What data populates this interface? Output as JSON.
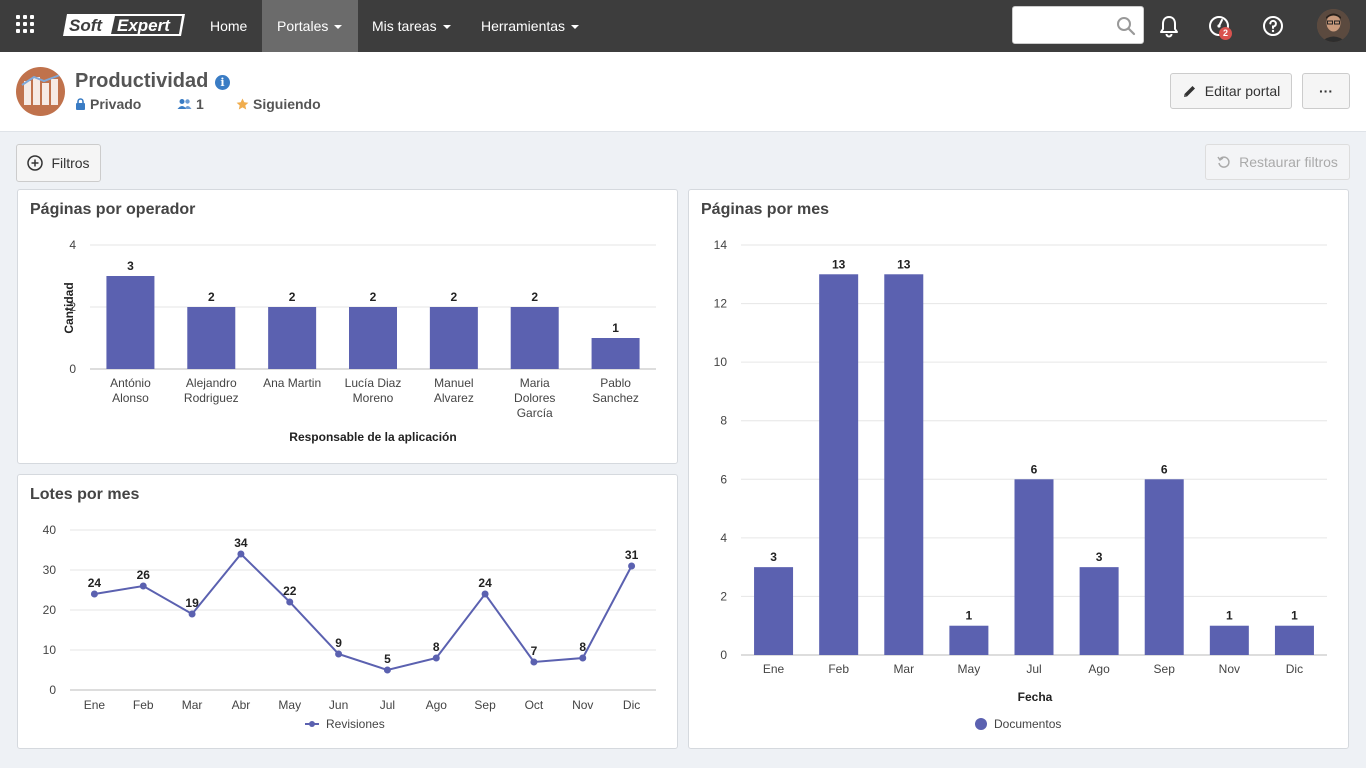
{
  "nav": {
    "home": "Home",
    "portales": "Portales",
    "mis_tareas": "Mis tareas",
    "herramientas": "Herramientas",
    "search_value": "",
    "notification_badge": "2",
    "logo_text_1": "Soft",
    "logo_text_2": "Expert"
  },
  "portal": {
    "title": "Productividad",
    "privacy": "Privado",
    "members": "1",
    "following": "Siguiendo",
    "edit_button": "Editar portal",
    "more_button": "···"
  },
  "filters": {
    "filter_button": "Filtros",
    "reset_button": "Restaurar filtros"
  },
  "colors": {
    "bar": "#5b61b0",
    "nav_bg": "#3d3d3d",
    "nav_active": "#6b6b6b",
    "grid": "#e6e6e6"
  },
  "chart_data": [
    {
      "id": "paginas-por-operador",
      "type": "bar",
      "title": "Páginas por operador",
      "xlabel": "Responsable de la aplicación",
      "ylabel": "Cantidad",
      "categories": [
        [
          "António",
          "Alonso"
        ],
        [
          "Alejandro",
          "Rodriguez"
        ],
        [
          "Ana Martin"
        ],
        [
          "Lucía Diaz",
          "Moreno"
        ],
        [
          "Manuel",
          "Alvarez"
        ],
        [
          "Maria",
          "Dolores",
          "García"
        ],
        [
          "Pablo",
          "Sanchez"
        ]
      ],
      "values": [
        3,
        2,
        2,
        2,
        2,
        2,
        1
      ],
      "ylim": [
        0,
        4
      ],
      "yticks": [
        0,
        2,
        4
      ],
      "grid": true
    },
    {
      "id": "lotes-por-mes",
      "type": "line",
      "title": "Lotes por mes",
      "categories": [
        "Ene",
        "Feb",
        "Mar",
        "Abr",
        "May",
        "Jun",
        "Jul",
        "Ago",
        "Sep",
        "Oct",
        "Nov",
        "Dic"
      ],
      "series": [
        {
          "name": "Revisiones",
          "values": [
            24,
            26,
            19,
            34,
            22,
            9,
            5,
            8,
            24,
            7,
            8,
            31
          ]
        }
      ],
      "ylim": [
        0,
        40
      ],
      "yticks": [
        0,
        10,
        20,
        30,
        40
      ],
      "legend": "bottom",
      "grid": true
    },
    {
      "id": "paginas-por-mes",
      "type": "bar",
      "title": "Páginas por mes",
      "xlabel": "Fecha",
      "categories": [
        "Ene",
        "Feb",
        "Mar",
        "May",
        "Jul",
        "Ago",
        "Sep",
        "Nov",
        "Dic"
      ],
      "series": [
        {
          "name": "Documentos",
          "values": [
            3,
            13,
            13,
            1,
            6,
            3,
            6,
            1,
            1
          ]
        }
      ],
      "ylim": [
        0,
        14
      ],
      "yticks": [
        0,
        2,
        4,
        6,
        8,
        10,
        12,
        14
      ],
      "legend": "bottom",
      "grid": true
    }
  ]
}
